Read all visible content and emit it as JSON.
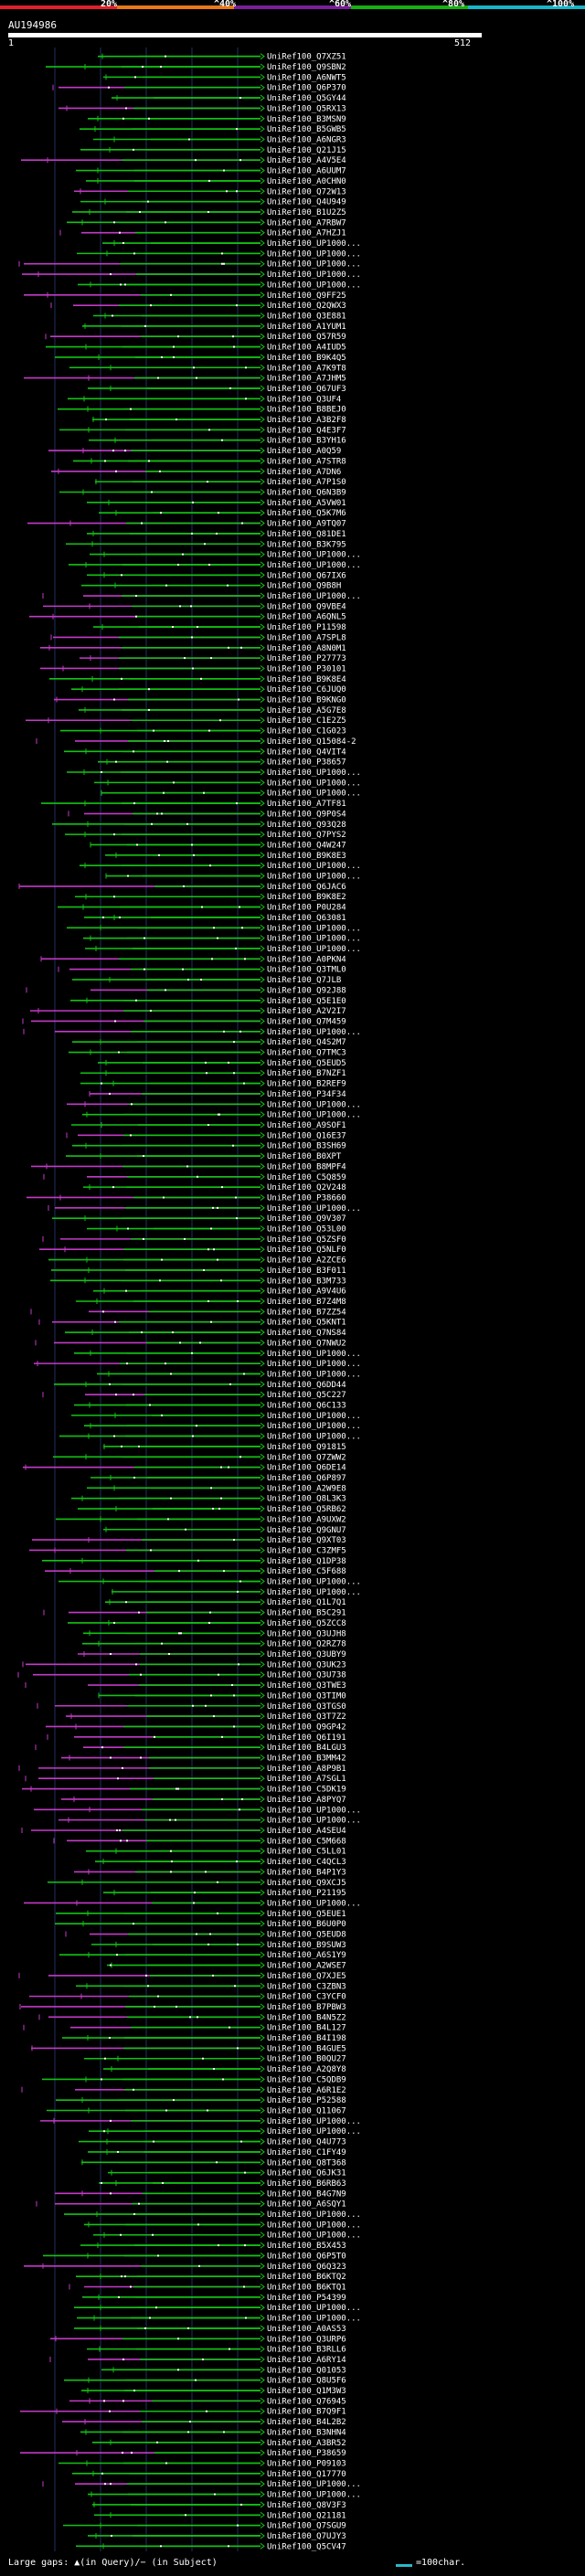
{
  "header": {
    "segments": [
      {
        "label": "20%",
        "color": "#e0202a"
      },
      {
        "label": "^40%",
        "color": "#e87818"
      },
      {
        "label": "^60%",
        "color": "#7a1e9a"
      },
      {
        "label": "^80%",
        "color": "#17b012"
      },
      {
        "label": "^100%",
        "color": "#17b6c8"
      }
    ],
    "query_id": "AU194986",
    "query_start": "1",
    "query_end": "512"
  },
  "colors": {
    "green": "#12c213",
    "magenta": "#c33ac7",
    "grid": "#223060"
  },
  "hit_labels": [
    "UniRef100_Q7XZ51",
    "UniRef100_Q9SBN2",
    "UniRef100_A6NWT5",
    "UniRef100_Q6P370",
    "UniRef100_Q5GY44",
    "UniRef100_Q5RX13",
    "UniRef100_B3MSN9",
    "UniRef100_B5GWB5",
    "UniRef100_A6NGR3",
    "UniRef100_Q21J15",
    "UniRef100_A4V5E4",
    "UniRef100_A6UUM7",
    "UniRef100_A0CHN0",
    "UniRef100_Q72W13",
    "UniRef100_Q4U949",
    "UniRef100_B1U2Z5",
    "UniRef100_A7RBW7",
    "UniRef100_A7HZJ1",
    "UniRef100_UP1000...",
    "UniRef100_UP1000...",
    "UniRef100_UP1000...",
    "UniRef100_UP1000...",
    "UniRef100_UP1000...",
    "UniRef100_Q9FF25",
    "UniRef100_Q2QWX3",
    "UniRef100_Q3E881",
    "UniRef100_A1YUM1",
    "UniRef100_Q57R59",
    "UniRef100_A4IUD5",
    "UniRef100_B9K4Q5",
    "UniRef100_A7K9T8",
    "UniRef100_A7JHM5",
    "UniRef100_Q67UF3",
    "UniRef100_Q3UF4",
    "UniRef100_B8BEJ0",
    "UniRef100_A3B2F8",
    "UniRef100_Q4E3F7",
    "UniRef100_B3YH16",
    "UniRef100_A0Q59",
    "UniRef100_A7STR8",
    "UniRef100_A7DN6",
    "UniRef100_A7P1S0",
    "UniRef100_Q6N3B9",
    "UniRef100_A5VW01",
    "UniRef100_Q5K7M6",
    "UniRef100_A9TQ07",
    "UniRef100_Q81DE1",
    "UniRef100_B3K795",
    "UniRef100_UP1000...",
    "UniRef100_UP1000...",
    "UniRef100_Q67IX6",
    "UniRef100_Q9B8H",
    "UniRef100_UP1000...",
    "UniRef100_Q9VBE4",
    "UniRef100_A6QNL5",
    "UniRef100_P11598",
    "UniRef100_A7SPL8",
    "UniRef100_A8N0M1",
    "UniRef100_P27773",
    "UniRef100_P30101",
    "UniRef100_B9K8E4",
    "UniRef100_C6JUQ0",
    "UniRef100_B9KNG0",
    "UniRef100_A5G7E8",
    "UniRef100_C1E2Z5",
    "UniRef100_C1G023",
    "UniRef100_Q15084-2",
    "UniRef100_Q4VIT4",
    "UniRef100_P38657",
    "UniRef100_UP1000...",
    "UniRef100_UP1000...",
    "UniRef100_UP1000...",
    "UniRef100_A7TF81",
    "UniRef100_Q9P0S4",
    "UniRef100_Q93Q28",
    "UniRef100_Q7PYS2",
    "UniRef100_Q4W247",
    "UniRef100_B9K8E3",
    "UniRef100_UP1000...",
    "UniRef100_UP1000...",
    "UniRef100_Q6JAC6",
    "UniRef100_B9K8E2",
    "UniRef100_P0U284",
    "UniRef100_Q63081",
    "UniRef100_UP1000...",
    "UniRef100_UP1000...",
    "UniRef100_UP1000...",
    "UniRef100_A0PKN4",
    "UniRef100_Q3TML0",
    "UniRef100_Q7JLB",
    "UniRef100_Q92J88",
    "UniRef100_Q5E1E0",
    "UniRef100_A2V2I7",
    "UniRef100_Q7M459",
    "UniRef100_UP1000...",
    "UniRef100_Q4S2M7",
    "UniRef100_Q7TMC3",
    "UniRef100_Q5EUD5",
    "UniRef100_B7NZF1",
    "UniRef100_B2REF9",
    "UniRef100_P34F34",
    "UniRef100_UP1000...",
    "UniRef100_UP1000...",
    "UniRef100_A9SOF1",
    "UniRef100_Q16E37",
    "UniRef100_B3SH69",
    "UniRef100_B0XPT",
    "UniRef100_B8MPF4",
    "UniRef100_C5Q859",
    "UniRef100_Q2V248",
    "UniRef100_P38660",
    "UniRef100_UP1000...",
    "UniRef100_Q9V307",
    "UniRef100_Q53L00",
    "UniRef100_Q5ZSF0",
    "UniRef100_Q5NLF0",
    "UniRef100_A2ZCE6",
    "UniRef100_B3F011",
    "UniRef100_B3M733",
    "UniRef100_A9V4U6",
    "UniRef100_B7Z4M8",
    "UniRef100_B7ZZ54",
    "UniRef100_Q5KNT1",
    "UniRef100_Q7NS84",
    "UniRef100_Q7NWU2",
    "UniRef100_UP1000...",
    "UniRef100_UP1000...",
    "UniRef100_UP1000...",
    "UniRef100_Q6DD44",
    "UniRef100_Q5C227",
    "UniRef100_Q6C133",
    "UniRef100_UP1000...",
    "UniRef100_UP1000...",
    "UniRef100_UP1000...",
    "UniRef100_Q91815",
    "UniRef100_Q7ZWW2",
    "UniRef100_Q6DE14",
    "UniRef100_Q6P897",
    "UniRef100_A2W9E8",
    "UniRef100_Q8L3K3",
    "UniRef100_Q5RB62",
    "UniRef100_A9UXW2",
    "UniRef100_Q9GNU7",
    "UniRef100_Q9XT03",
    "UniRef100_C3ZMF5",
    "UniRef100_Q1DP38",
    "UniRef100_C5F688",
    "UniRef100_UP1000...",
    "UniRef100_UP1000...",
    "UniRef100_Q1L7Q1",
    "UniRef100_B5C291",
    "UniRef100_Q5ZCC8",
    "UniRef100_Q3UJH8",
    "UniRef100_Q2RZ78",
    "UniRef100_Q3UBY9",
    "UniRef100_Q3UK23",
    "UniRef100_Q3U738",
    "UniRef100_Q3TWE3",
    "UniRef100_Q3TIM0",
    "UniRef100_Q3TGS0",
    "UniRef100_Q3T7Z2",
    "UniRef100_Q9GP42",
    "UniRef100_Q6I191",
    "UniRef100_B4LGU3",
    "UniRef100_B3MM42",
    "UniRef100_A8P9B1",
    "UniRef100_A7SGL1",
    "UniRef100_C5DK19",
    "UniRef100_A8PYQ7",
    "UniRef100_UP1000...",
    "UniRef100_UP1000...",
    "UniRef100_A4SEU4",
    "UniRef100_C5M668",
    "UniRef100_C5LL01",
    "UniRef100_C4QCL3",
    "UniRef100_B4P1Y3",
    "UniRef100_Q9XCJ5",
    "UniRef100_P21195",
    "UniRef100_UP1000...",
    "UniRef100_Q5EUE1",
    "UniRef100_B6U0P0",
    "UniRef100_Q5EUD8",
    "UniRef100_B9SUW3",
    "UniRef100_A6S1Y9",
    "UniRef100_A2WSE7",
    "UniRef100_Q7XJE5",
    "UniRef100_C3ZBN3",
    "UniRef100_C3YCF0",
    "UniRef100_B7PBW3",
    "UniRef100_B4N5Z2",
    "UniRef100_B4L127",
    "UniRef100_B4I198",
    "UniRef100_B4GUE5",
    "UniRef100_B0QU27",
    "UniRef100_A2Q8Y8",
    "UniRef100_C5QDB9",
    "UniRef100_A6R1E2",
    "UniRef100_P52588",
    "UniRef100_Q11067",
    "UniRef100_UP1000...",
    "UniRef100_UP1000...",
    "UniRef100_Q4U773",
    "UniRef100_C1FY49",
    "UniRef100_Q8T368",
    "UniRef100_Q6JK31",
    "UniRef100_B6RB63",
    "UniRef100_B4G7N9",
    "UniRef100_A6SQY1",
    "UniRef100_UP1000...",
    "UniRef100_UP1000...",
    "UniRef100_UP1000...",
    "UniRef100_B5X453",
    "UniRef100_Q6P5T0",
    "UniRef100_Q6Q323",
    "UniRef100_B6KTQ2",
    "UniRef100_B6KTQ1",
    "UniRef100_P54399",
    "UniRef100_UP1000...",
    "UniRef100_UP1000...",
    "UniRef100_A0AS53",
    "UniRef100_Q3URP6",
    "UniRef100_B3RLL6",
    "UniRef100_A6RY14",
    "UniRef100_Q01053",
    "UniRef100_Q8U5F6",
    "UniRef100_Q1M3W3",
    "UniRef100_Q76945",
    "UniRef100_B7Q9F1",
    "UniRef100_B4L2B2",
    "UniRef100_B3NHN4",
    "UniRef100_A3BR52",
    "UniRef100_P38659",
    "UniRef100_P09103",
    "UniRef100_Q17770",
    "UniRef100_UP1000...",
    "UniRef100_UP1000...",
    "UniRef100_Q8V3F3",
    "UniRef100_Q21181",
    "UniRef100_Q7SGU9",
    "UniRef100_Q7UJY3",
    "UniRef100_Q5CV47"
  ],
  "footer": {
    "text": "Large gaps: ▲(in Query)/− (in Subject)",
    "key_label": "=100char."
  }
}
